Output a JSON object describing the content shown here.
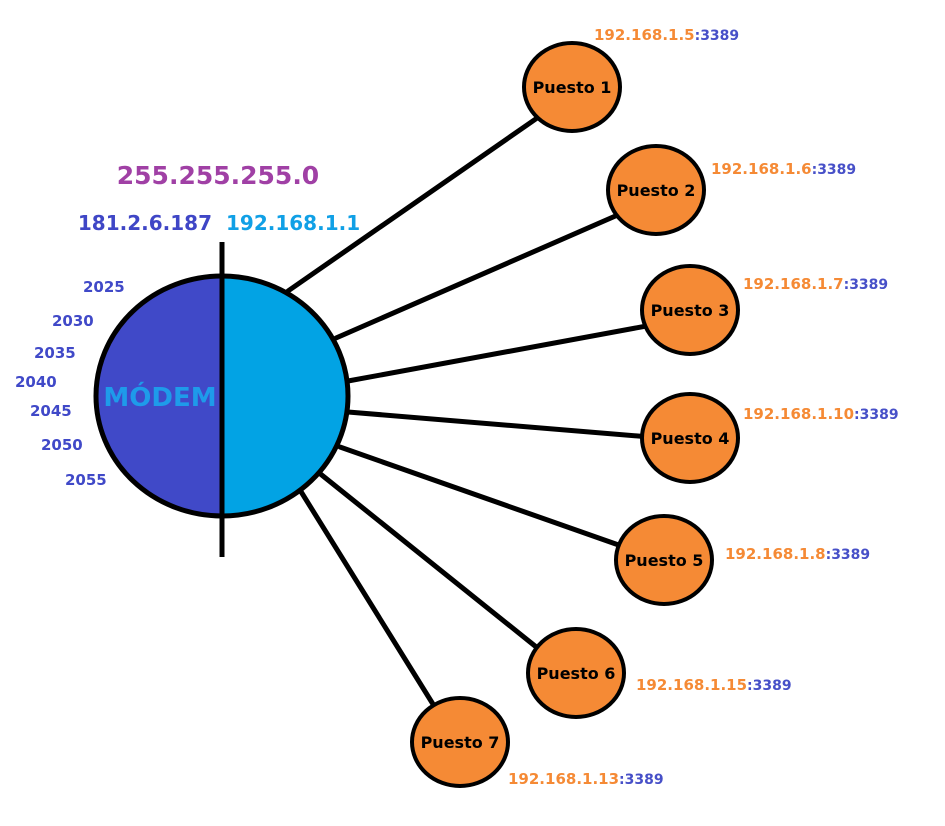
{
  "colors": {
    "modem_wan_half": "#4049c8",
    "modem_lan_half": "#02a3e4",
    "puesto_fill": "#f58a35",
    "ip_orange": "#f58a35",
    "port_blue": "#4750c8",
    "mask_purple": "#a040a5",
    "line": "#000000"
  },
  "modem": {
    "label": "MÓDEM",
    "subnet_mask": "255.255.255.0",
    "wan_ip": "181.2.6.187",
    "lan_ip": "192.168.1.1",
    "ports": [
      "2025",
      "2030",
      "2035",
      "2040",
      "2045",
      "2050",
      "2055"
    ]
  },
  "puestos": [
    {
      "name": "Puesto 1",
      "ip": "192.168.1.5",
      "port": ":3389"
    },
    {
      "name": "Puesto 2",
      "ip": "192.168.1.6",
      "port": ":3389"
    },
    {
      "name": "Puesto 3",
      "ip": "192.168.1.7",
      "port": ":3389"
    },
    {
      "name": "Puesto 4",
      "ip": "192.168.1.10",
      "port": ":3389"
    },
    {
      "name": "Puesto 5",
      "ip": "192.168.1.8",
      "port": ":3389"
    },
    {
      "name": "Puesto 6",
      "ip": "192.168.1.15",
      "port": ":3389"
    },
    {
      "name": "Puesto 7",
      "ip": "192.168.1.13",
      "port": ":3389"
    }
  ]
}
